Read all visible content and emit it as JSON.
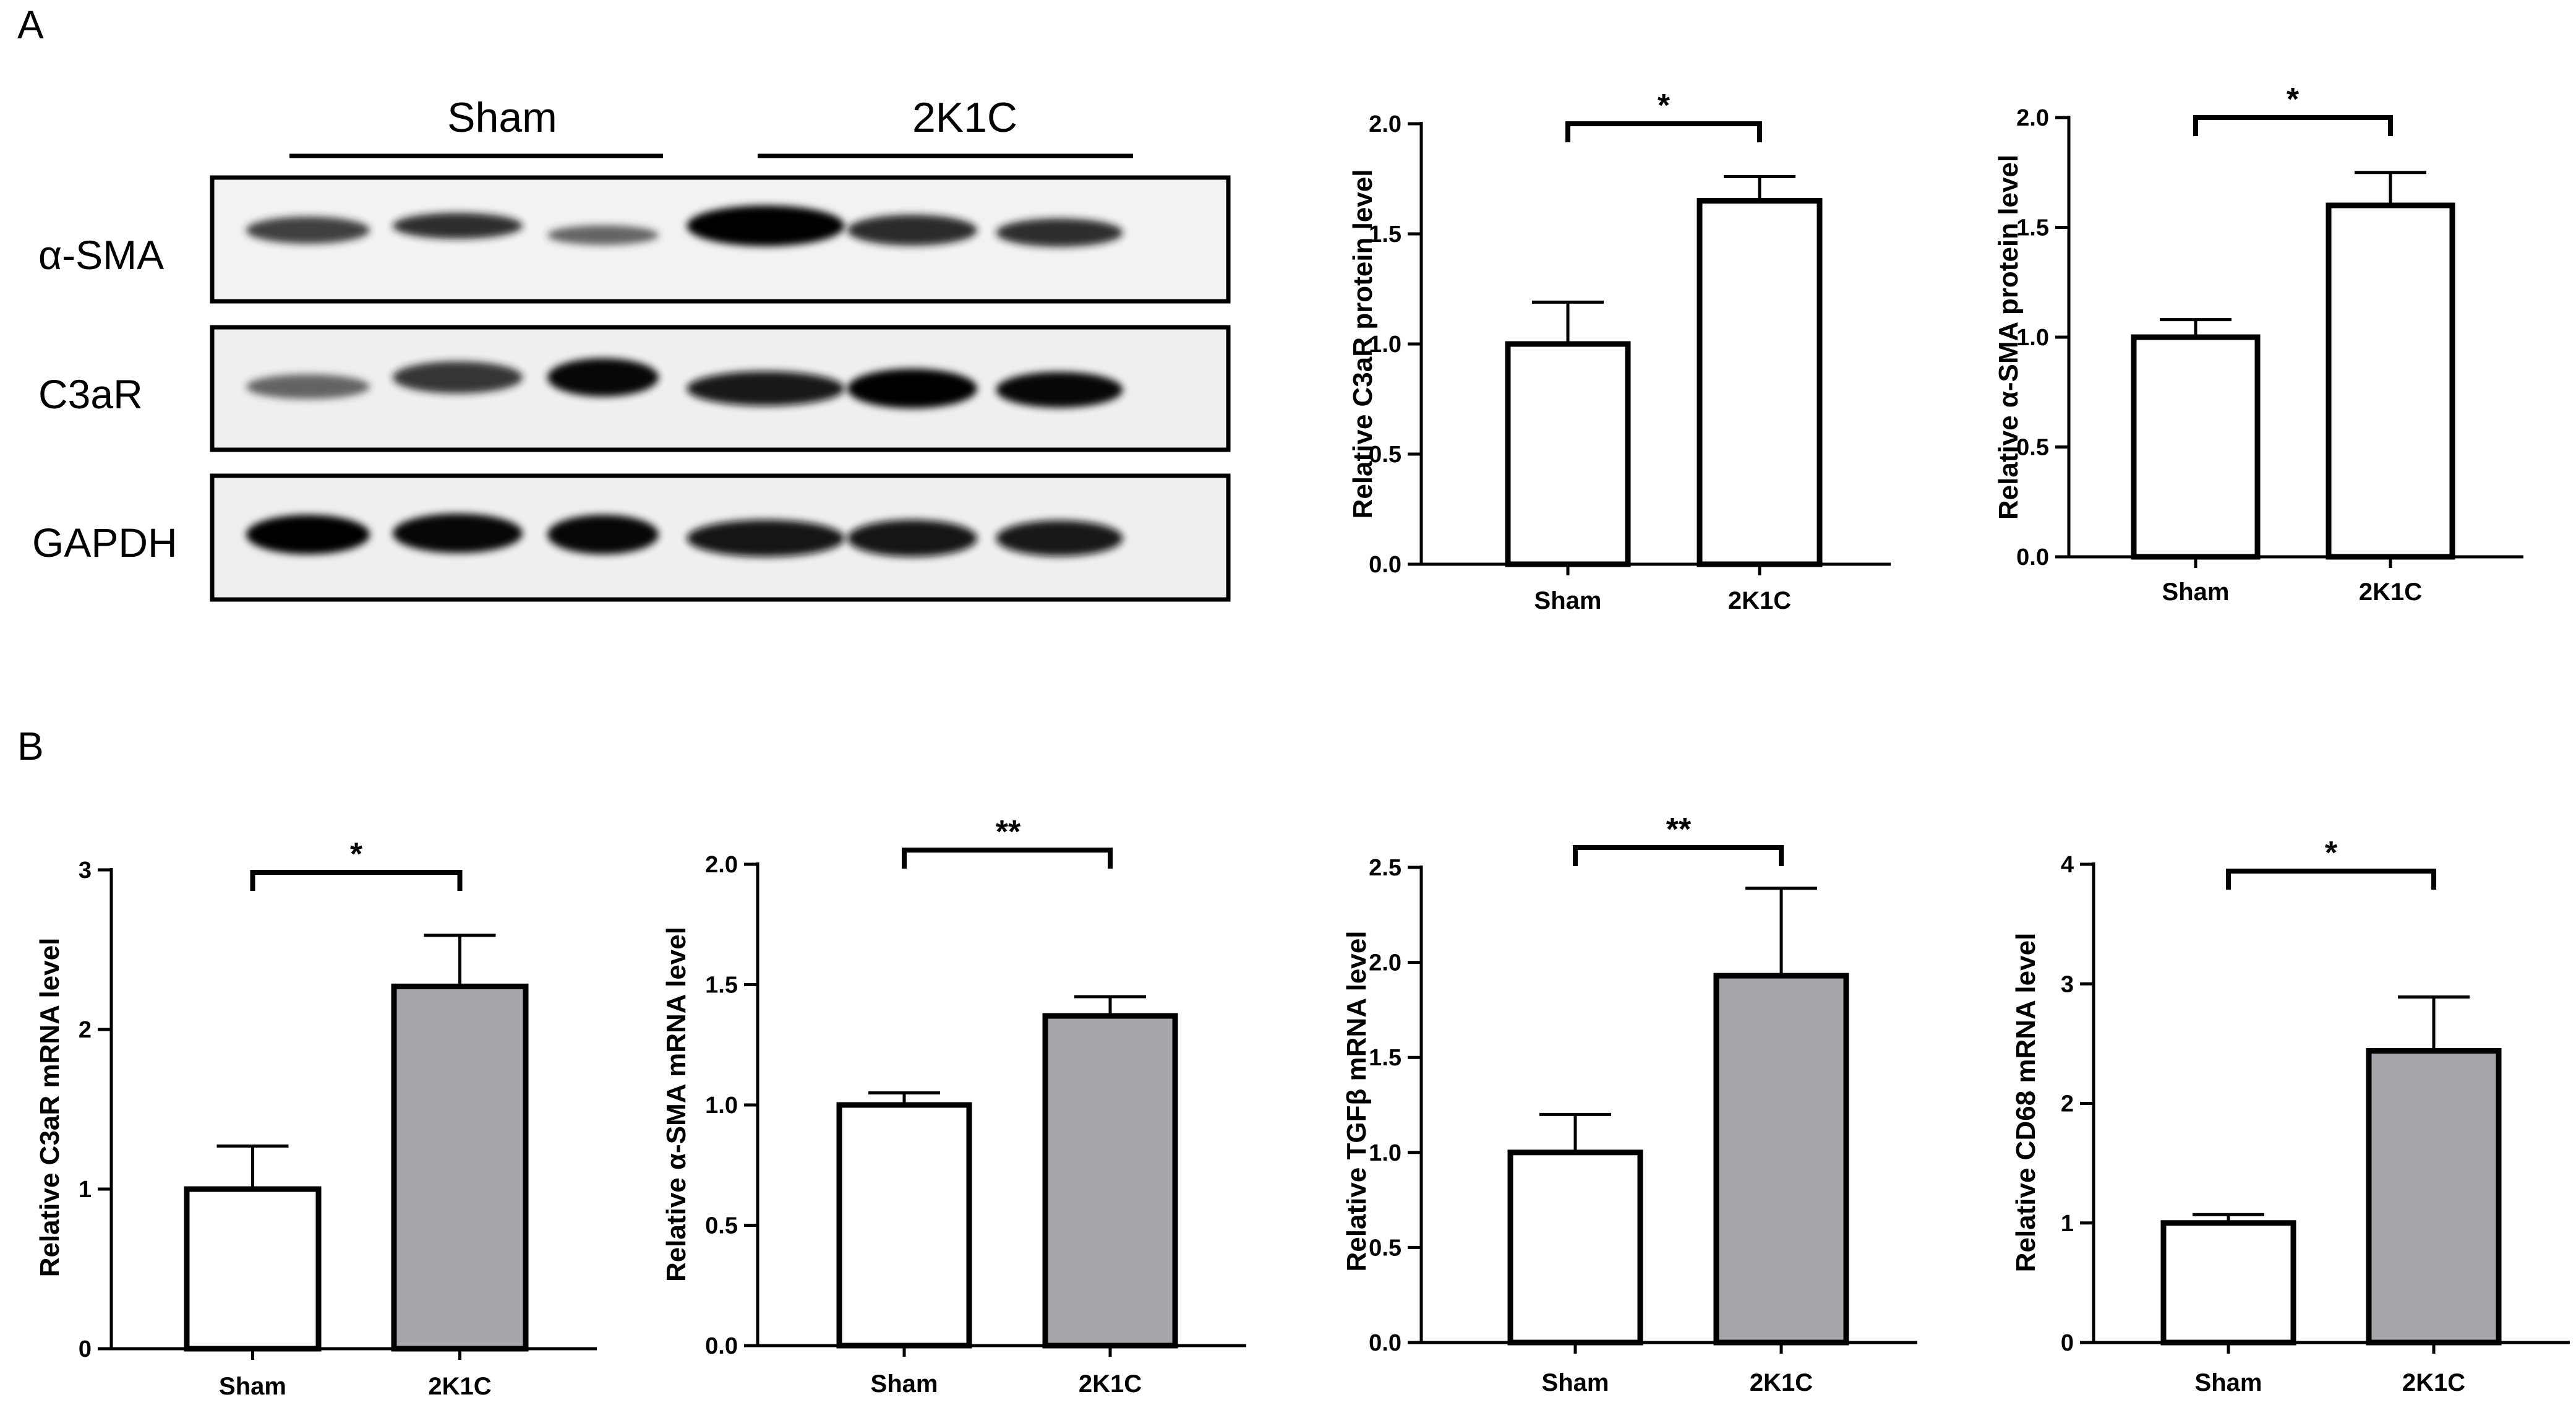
{
  "figure": {
    "panel_a_label": "A",
    "panel_b_label": "B"
  },
  "blot": {
    "group_labels": [
      "Sham",
      "2K1C"
    ],
    "rows": [
      {
        "label": "α-SMA",
        "intensities": [
          0.72,
          0.8,
          0.55,
          1.0,
          0.82,
          0.8
        ]
      },
      {
        "label": "C3aR",
        "intensities": [
          0.55,
          0.78,
          0.95,
          0.9,
          1.0,
          0.95
        ]
      },
      {
        "label": "GAPDH",
        "intensities": [
          1.0,
          0.95,
          0.95,
          0.92,
          0.92,
          0.9
        ]
      }
    ]
  },
  "chart_data": [
    {
      "type": "bar",
      "categories": [
        "Sham",
        "2K1C"
      ],
      "values": [
        1.0,
        1.65
      ],
      "errors": [
        0.19,
        0.11
      ],
      "ylabel": "Relative C3aR protein level",
      "ylim": [
        0,
        2.0
      ],
      "yticks": [
        "0.0",
        "0.5",
        "1.0",
        "1.5",
        "2.0"
      ],
      "significance": "*",
      "fills": [
        "#ffffff",
        "#ffffff"
      ]
    },
    {
      "type": "bar",
      "categories": [
        "Sham",
        "2K1C"
      ],
      "values": [
        1.0,
        1.6
      ],
      "errors": [
        0.08,
        0.15
      ],
      "ylabel": "Relative α-SMA protein level",
      "ylim": [
        0,
        2.0
      ],
      "yticks": [
        "0.0",
        "0.5",
        "1.0",
        "1.5",
        "2.0"
      ],
      "significance": "*",
      "fills": [
        "#ffffff",
        "#ffffff"
      ]
    },
    {
      "type": "bar",
      "categories": [
        "Sham",
        "2K1C"
      ],
      "values": [
        1.0,
        2.27
      ],
      "errors": [
        0.27,
        0.32
      ],
      "ylabel": "Relative C3aR mRNA level",
      "ylim": [
        0,
        3
      ],
      "yticks": [
        "0",
        "1",
        "2",
        "3"
      ],
      "significance": "*",
      "fills": [
        "#ffffff",
        "#a7a6ab"
      ]
    },
    {
      "type": "bar",
      "categories": [
        "Sham",
        "2K1C"
      ],
      "values": [
        1.0,
        1.37
      ],
      "errors": [
        0.05,
        0.08
      ],
      "ylabel": "Relative α-SMA mRNA level",
      "ylim": [
        0,
        2.0
      ],
      "yticks": [
        "0.0",
        "0.5",
        "1.0",
        "1.5",
        "2.0"
      ],
      "significance": "**",
      "fills": [
        "#ffffff",
        "#a7a6ab"
      ]
    },
    {
      "type": "bar",
      "categories": [
        "Sham",
        "2K1C"
      ],
      "values": [
        1.0,
        1.93
      ],
      "errors": [
        0.2,
        0.46
      ],
      "ylabel": "Relative TGFβ mRNA level",
      "ylim": [
        0,
        2.5
      ],
      "yticks": [
        "0.0",
        "0.5",
        "1.0",
        "1.5",
        "2.0",
        "2.5"
      ],
      "significance": "**",
      "fills": [
        "#ffffff",
        "#a7a6ab"
      ]
    },
    {
      "type": "bar",
      "categories": [
        "Sham",
        "2K1C"
      ],
      "values": [
        1.0,
        2.44
      ],
      "errors": [
        0.07,
        0.45
      ],
      "ylabel": "Relative CD68 mRNA level",
      "ylim": [
        0,
        4
      ],
      "yticks": [
        "0",
        "1",
        "2",
        "3",
        "4"
      ],
      "significance": "*",
      "fills": [
        "#ffffff",
        "#a7a6ab"
      ]
    }
  ]
}
